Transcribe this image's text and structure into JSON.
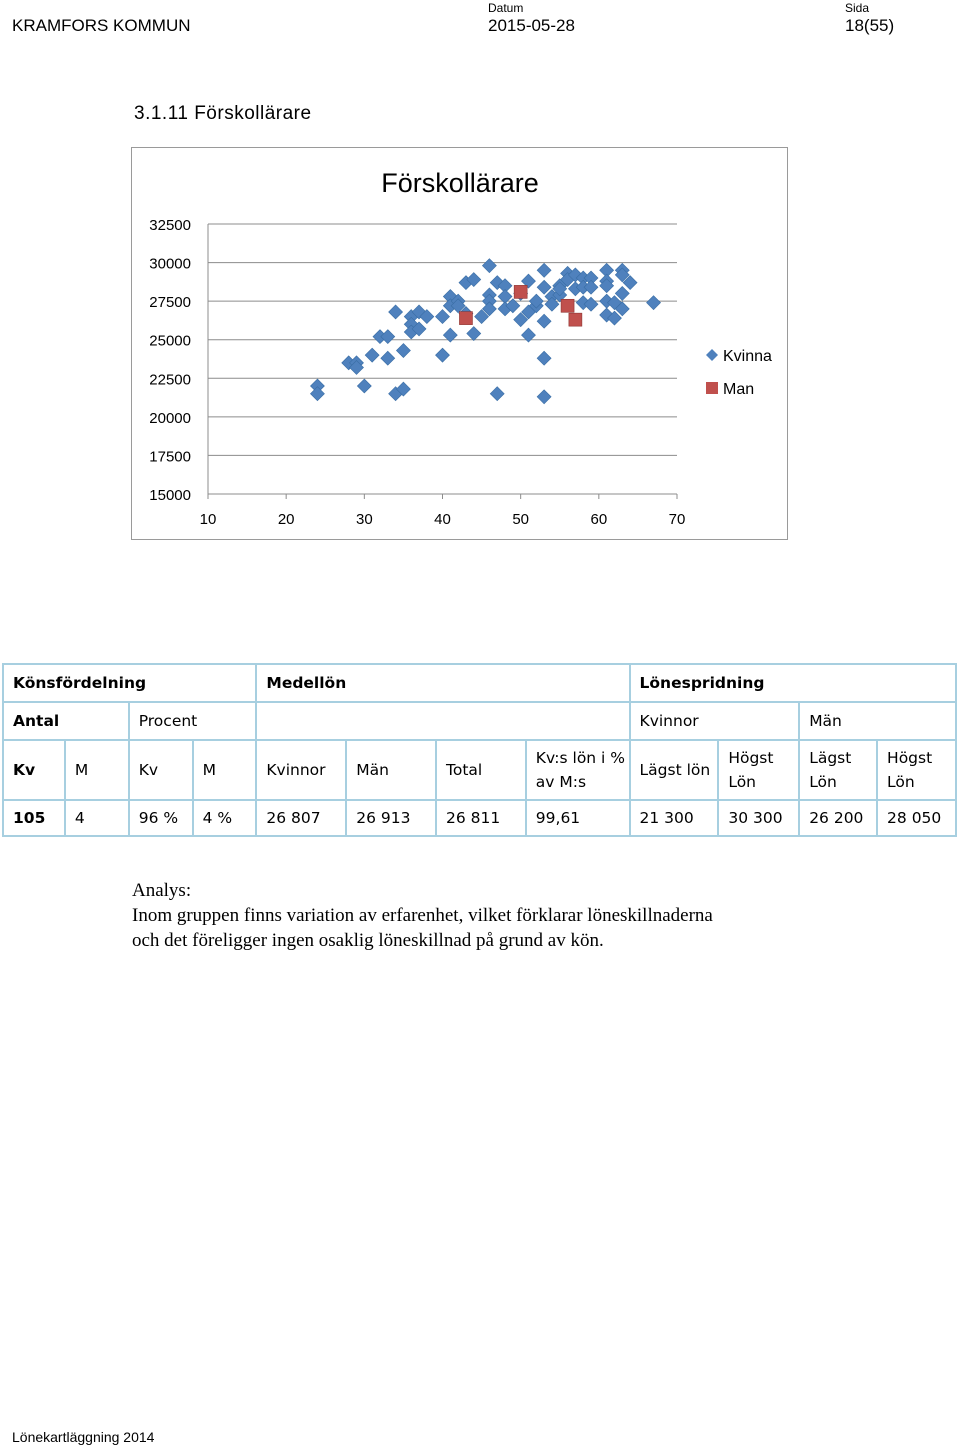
{
  "header": {
    "organization": "KRAMFORS KOMMUN",
    "date_caption": "Datum",
    "date_value": "2015-05-28",
    "page_caption": "Sida",
    "page_value": "18(55)"
  },
  "section": {
    "title": "3.1.11  Förskollärare"
  },
  "colors": {
    "kvinna": "#4f81bd",
    "man": "#c0504d"
  },
  "chart_data": {
    "type": "scatter",
    "title": "Förskollärare",
    "xlabel": "",
    "ylabel": "",
    "xlim": [
      10,
      70
    ],
    "ylim": [
      15000,
      32500
    ],
    "xticks": [
      "10",
      "20",
      "30",
      "40",
      "50",
      "60",
      "70"
    ],
    "yticks": [
      "15000",
      "17500",
      "20000",
      "22500",
      "25000",
      "27500",
      "30000",
      "32500"
    ],
    "grid": "horizontal",
    "legend_position": "right",
    "series": [
      {
        "name": "Kvinna",
        "marker": "diamond",
        "points": [
          [
            24,
            22000
          ],
          [
            24,
            21500
          ],
          [
            28,
            23500
          ],
          [
            29,
            23500
          ],
          [
            29,
            23200
          ],
          [
            30,
            22000
          ],
          [
            31,
            24000
          ],
          [
            32,
            25200
          ],
          [
            33,
            25200
          ],
          [
            33,
            23800
          ],
          [
            34,
            26800
          ],
          [
            34,
            21500
          ],
          [
            35,
            21800
          ],
          [
            35,
            24300
          ],
          [
            36,
            26500
          ],
          [
            36,
            26000
          ],
          [
            36,
            25500
          ],
          [
            37,
            26800
          ],
          [
            37,
            25700
          ],
          [
            38,
            26500
          ],
          [
            40,
            24000
          ],
          [
            40,
            26500
          ],
          [
            41,
            27800
          ],
          [
            41,
            27200
          ],
          [
            41,
            25300
          ],
          [
            42,
            27500
          ],
          [
            42,
            27200
          ],
          [
            43,
            28700
          ],
          [
            43,
            26700
          ],
          [
            44,
            28900
          ],
          [
            44,
            25400
          ],
          [
            45,
            26500
          ],
          [
            46,
            29800
          ],
          [
            46,
            27900
          ],
          [
            46,
            27500
          ],
          [
            46,
            27000
          ],
          [
            47,
            28700
          ],
          [
            47,
            21500
          ],
          [
            48,
            28500
          ],
          [
            48,
            27800
          ],
          [
            48,
            27000
          ],
          [
            49,
            27200
          ],
          [
            50,
            26300
          ],
          [
            50,
            28000
          ],
          [
            51,
            28800
          ],
          [
            51,
            26800
          ],
          [
            51,
            25300
          ],
          [
            52,
            27200
          ],
          [
            52,
            27500
          ],
          [
            53,
            29500
          ],
          [
            53,
            28400
          ],
          [
            53,
            23800
          ],
          [
            53,
            26200
          ],
          [
            53,
            21300
          ],
          [
            54,
            27800
          ],
          [
            54,
            27300
          ],
          [
            55,
            28500
          ],
          [
            55,
            27900
          ],
          [
            55,
            28300
          ],
          [
            56,
            29300
          ],
          [
            56,
            28900
          ],
          [
            57,
            29200
          ],
          [
            57,
            28300
          ],
          [
            58,
            29000
          ],
          [
            58,
            28400
          ],
          [
            58,
            27400
          ],
          [
            59,
            29000
          ],
          [
            59,
            28400
          ],
          [
            59,
            27300
          ],
          [
            61,
            29500
          ],
          [
            61,
            28800
          ],
          [
            61,
            28500
          ],
          [
            61,
            27500
          ],
          [
            61,
            26600
          ],
          [
            62,
            27400
          ],
          [
            62,
            26400
          ],
          [
            63,
            29500
          ],
          [
            63,
            29200
          ],
          [
            63,
            28000
          ],
          [
            63,
            27000
          ],
          [
            64,
            28700
          ],
          [
            67,
            27400
          ]
        ]
      },
      {
        "name": "Man",
        "marker": "square",
        "points": [
          [
            43,
            26400
          ],
          [
            50,
            28100
          ],
          [
            56,
            27200
          ],
          [
            57,
            26300
          ]
        ]
      }
    ]
  },
  "table": {
    "row1": [
      "Könsfördelning",
      "Medellön",
      "Lönespridning"
    ],
    "row2": [
      "Antal",
      "Procent",
      "",
      "Kvinnor",
      "Män"
    ],
    "row3": [
      "Kv",
      "M",
      "Kv",
      "M",
      "Kvinnor",
      "Män",
      "Total",
      "Kv:s lön i % av M:s",
      "Lägst lön",
      "Högst Lön",
      "Lägst Lön",
      "Högst Lön"
    ],
    "row4": [
      "105",
      "4",
      "96 %",
      "4 %",
      "26 807",
      "26 913",
      "26 811",
      "99,61",
      "21 300",
      "30 300",
      "26 200",
      "28 050"
    ]
  },
  "analysis": {
    "heading": "Analys:",
    "line1": "Inom gruppen finns variation av erfarenhet, vilket förklarar löneskillnaderna",
    "line2": "och det föreligger ingen osaklig löneskillnad på grund av kön."
  },
  "footer": {
    "text": "Lönekartläggning 2014"
  }
}
